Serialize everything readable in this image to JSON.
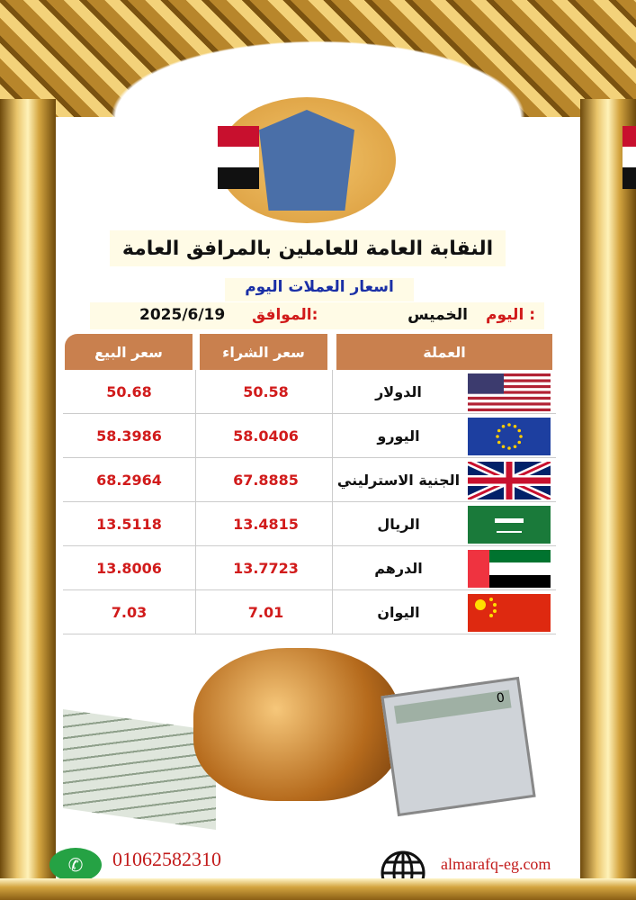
{
  "header": {
    "title": "النقابة العامة للعاملين بالمرافق العامة",
    "subtitle": "اسعار العملات اليوم",
    "day_label": "اليوم :",
    "day_value": "الخميس",
    "date_label": "الموافق:",
    "date_value": "2025/6/19"
  },
  "table": {
    "headers": [
      "سعر البيع",
      "سعر الشراء",
      "العملة"
    ],
    "rows": [
      {
        "currency": "الدولار",
        "flag": "usa",
        "buy": "50.58",
        "sell": "50.68"
      },
      {
        "currency": "اليورو",
        "flag": "eu",
        "buy": "58.0406",
        "sell": "58.3986"
      },
      {
        "currency": "الجنية الاسترليني",
        "flag": "uk",
        "buy": "67.8885",
        "sell": "68.2964"
      },
      {
        "currency": "الريال",
        "flag": "saudi",
        "buy": "13.4815",
        "sell": "13.5118"
      },
      {
        "currency": "الدرهم",
        "flag": "uae",
        "buy": "13.7723",
        "sell": "13.8006"
      },
      {
        "currency": "اليوان",
        "flag": "china",
        "buy": "7.01",
        "sell": "7.03"
      }
    ]
  },
  "footer": {
    "phone": "01062582310",
    "website": "almarafq-eg.com",
    "phone_icon": "whatsapp-icon",
    "web_icon": "globe-icon"
  },
  "calculator_display": "0",
  "colors": {
    "header_bg": "#c9804e",
    "value_red": "#d11b1b",
    "subtitle_blue": "#1a2fa6"
  }
}
